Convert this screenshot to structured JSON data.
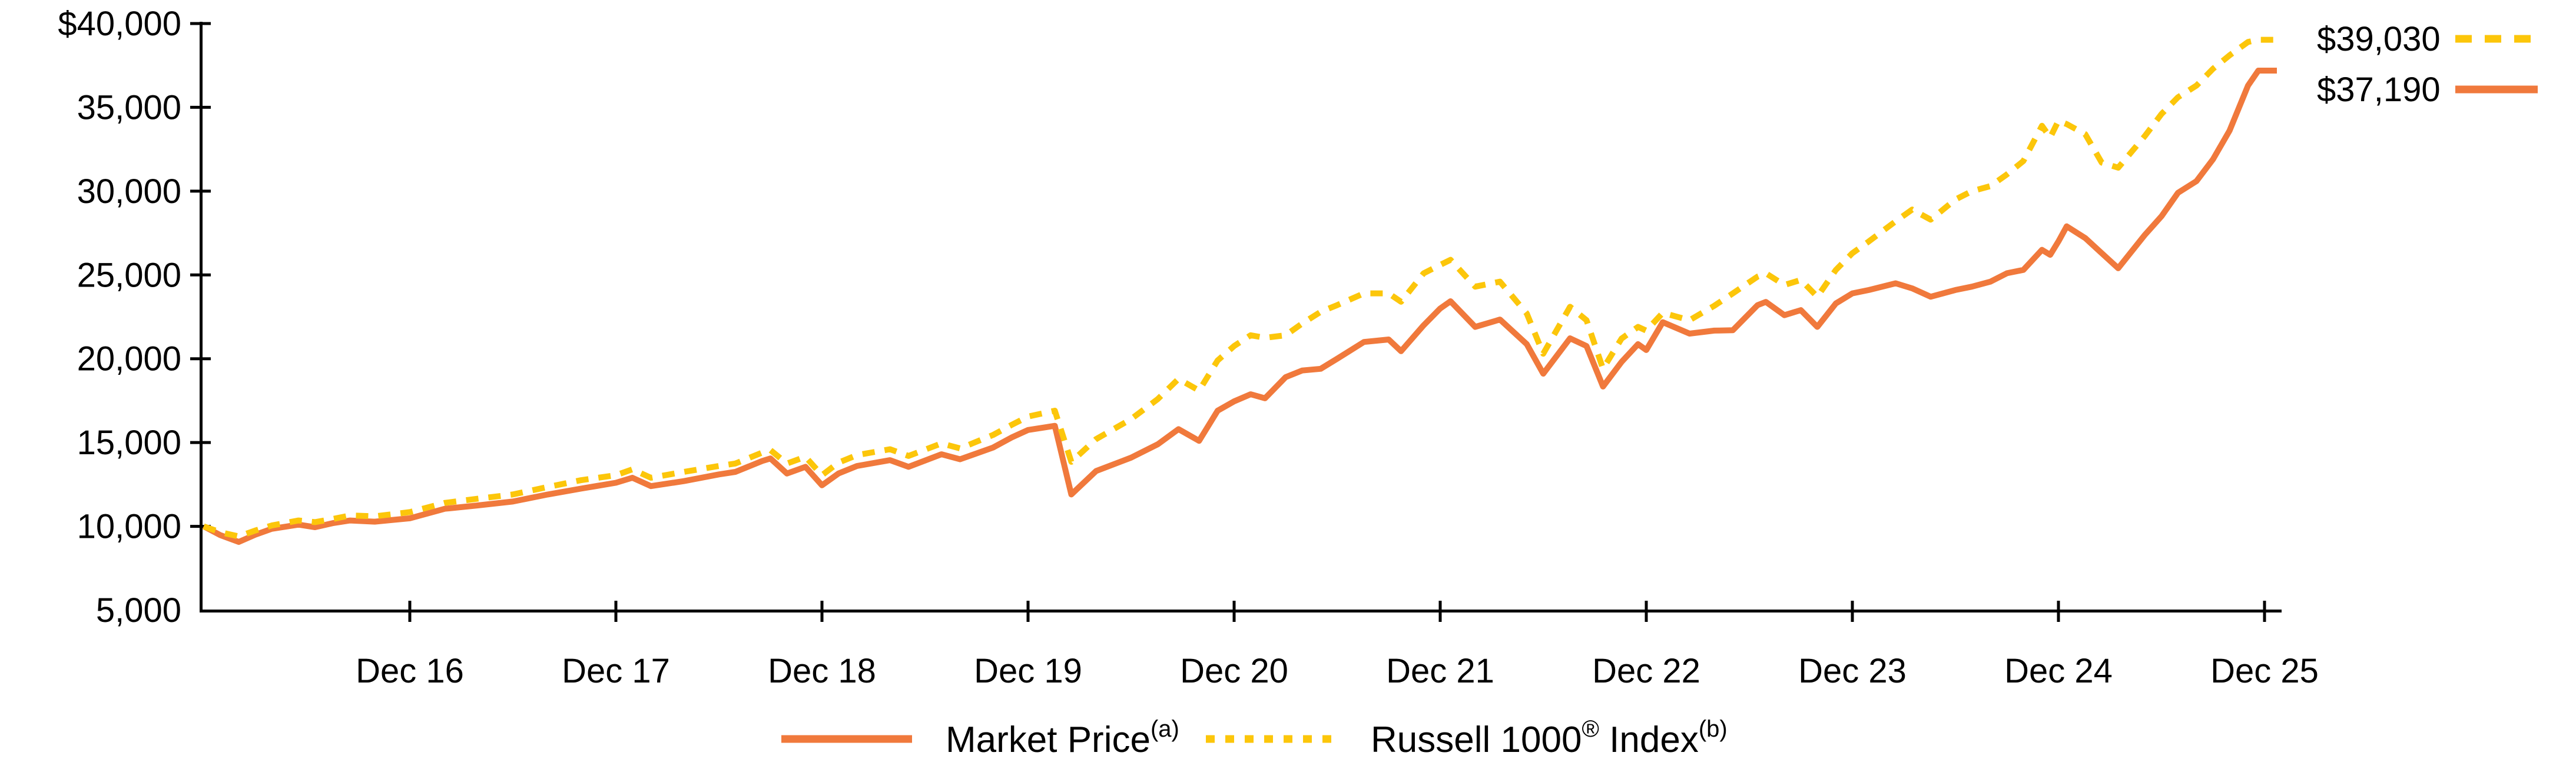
{
  "chart_data": {
    "type": "line",
    "title": "",
    "xlabel": "",
    "ylabel": "",
    "grid": false,
    "legend_position": "bottom-center",
    "y_axis": {
      "min": 5000,
      "max": 40000,
      "tick_values": [
        40000,
        35000,
        30000,
        25000,
        20000,
        15000,
        10000,
        5000
      ],
      "tick_labels": [
        "$40,000",
        "35,000",
        "30,000",
        "25,000",
        "20,000",
        "15,000",
        "10,000",
        "5,000"
      ]
    },
    "x_axis": {
      "tick_labels": [
        "Dec 16",
        "Dec 17",
        "Dec 18",
        "Dec 19",
        "Dec 20",
        "Dec 21",
        "Dec 22",
        "Dec 23",
        "Dec 24",
        "Dec 25"
      ],
      "start_value": 10000
    },
    "axis_color": "#000000",
    "series": [
      {
        "id": "market-price",
        "legend_parts": [
          "Market Price",
          "(a)"
        ],
        "end_label": "$37,190",
        "color": "#F0793C",
        "style": "solid",
        "points": [
          [
            0,
            10000
          ],
          [
            0.08,
            9480
          ],
          [
            0.17,
            9070
          ],
          [
            0.25,
            9500
          ],
          [
            0.33,
            9850
          ],
          [
            0.46,
            10100
          ],
          [
            0.54,
            9950
          ],
          [
            0.63,
            10200
          ],
          [
            0.71,
            10350
          ],
          [
            0.83,
            10280
          ],
          [
            1,
            10480
          ],
          [
            1.17,
            11050
          ],
          [
            1.33,
            11250
          ],
          [
            1.5,
            11480
          ],
          [
            1.67,
            11900
          ],
          [
            1.83,
            12250
          ],
          [
            2,
            12600
          ],
          [
            2.08,
            12900
          ],
          [
            2.17,
            12400
          ],
          [
            2.33,
            12700
          ],
          [
            2.5,
            13100
          ],
          [
            2.58,
            13250
          ],
          [
            2.71,
            13900
          ],
          [
            2.75,
            14050
          ],
          [
            2.83,
            13150
          ],
          [
            2.92,
            13550
          ],
          [
            3,
            12450
          ],
          [
            3.08,
            13150
          ],
          [
            3.17,
            13600
          ],
          [
            3.33,
            13950
          ],
          [
            3.42,
            13550
          ],
          [
            3.58,
            14300
          ],
          [
            3.67,
            14000
          ],
          [
            3.83,
            14700
          ],
          [
            3.92,
            15300
          ],
          [
            4,
            15750
          ],
          [
            4.13,
            16000
          ],
          [
            4.21,
            11900
          ],
          [
            4.33,
            13300
          ],
          [
            4.5,
            14100
          ],
          [
            4.63,
            14900
          ],
          [
            4.73,
            15800
          ],
          [
            4.83,
            15100
          ],
          [
            4.92,
            16900
          ],
          [
            5,
            17460
          ],
          [
            5.08,
            17880
          ],
          [
            5.15,
            17640
          ],
          [
            5.25,
            18900
          ],
          [
            5.33,
            19300
          ],
          [
            5.42,
            19400
          ],
          [
            5.5,
            20000
          ],
          [
            5.63,
            21000
          ],
          [
            5.75,
            21150
          ],
          [
            5.81,
            20450
          ],
          [
            5.92,
            22000
          ],
          [
            6,
            23000
          ],
          [
            6.05,
            23430
          ],
          [
            6.17,
            21900
          ],
          [
            6.29,
            22340
          ],
          [
            6.42,
            20870
          ],
          [
            6.5,
            19110
          ],
          [
            6.63,
            21220
          ],
          [
            6.71,
            20760
          ],
          [
            6.79,
            18340
          ],
          [
            6.88,
            19810
          ],
          [
            6.96,
            20870
          ],
          [
            7,
            20520
          ],
          [
            7.08,
            22180
          ],
          [
            7.21,
            21500
          ],
          [
            7.33,
            21680
          ],
          [
            7.42,
            21700
          ],
          [
            7.54,
            23200
          ],
          [
            7.58,
            23390
          ],
          [
            7.67,
            22600
          ],
          [
            7.75,
            22900
          ],
          [
            7.83,
            21900
          ],
          [
            7.92,
            23300
          ],
          [
            8,
            23900
          ],
          [
            8.08,
            24100
          ],
          [
            8.21,
            24500
          ],
          [
            8.29,
            24200
          ],
          [
            8.38,
            23700
          ],
          [
            8.5,
            24100
          ],
          [
            8.58,
            24300
          ],
          [
            8.67,
            24600
          ],
          [
            8.75,
            25100
          ],
          [
            8.83,
            25300
          ],
          [
            8.92,
            26500
          ],
          [
            8.96,
            26200
          ],
          [
            9,
            27000
          ],
          [
            9.04,
            27900
          ],
          [
            9.13,
            27200
          ],
          [
            9.21,
            26300
          ],
          [
            9.29,
            25400
          ],
          [
            9.42,
            27400
          ],
          [
            9.5,
            28500
          ],
          [
            9.58,
            29900
          ],
          [
            9.67,
            30600
          ],
          [
            9.75,
            31900
          ],
          [
            9.83,
            33600
          ],
          [
            9.92,
            36300
          ],
          [
            9.97,
            37190
          ],
          [
            10.06,
            37190
          ]
        ]
      },
      {
        "id": "russell-1000-index",
        "legend_parts": [
          "Russell 1000",
          "®",
          " Index",
          "(b)"
        ],
        "end_label": "$39,030",
        "color": "#FCC60A",
        "style": "dashed",
        "points": [
          [
            0,
            10000
          ],
          [
            0.08,
            9650
          ],
          [
            0.17,
            9400
          ],
          [
            0.25,
            9750
          ],
          [
            0.33,
            10050
          ],
          [
            0.46,
            10350
          ],
          [
            0.54,
            10250
          ],
          [
            0.63,
            10450
          ],
          [
            0.71,
            10650
          ],
          [
            0.83,
            10600
          ],
          [
            1,
            10850
          ],
          [
            1.17,
            11400
          ],
          [
            1.33,
            11650
          ],
          [
            1.5,
            11900
          ],
          [
            1.67,
            12350
          ],
          [
            1.83,
            12750
          ],
          [
            2,
            13050
          ],
          [
            2.08,
            13400
          ],
          [
            2.17,
            12900
          ],
          [
            2.33,
            13250
          ],
          [
            2.5,
            13600
          ],
          [
            2.58,
            13750
          ],
          [
            2.71,
            14400
          ],
          [
            2.75,
            14550
          ],
          [
            2.83,
            13750
          ],
          [
            2.92,
            14150
          ],
          [
            3,
            13050
          ],
          [
            3.08,
            13800
          ],
          [
            3.17,
            14250
          ],
          [
            3.33,
            14600
          ],
          [
            3.42,
            14200
          ],
          [
            3.58,
            14950
          ],
          [
            3.67,
            14650
          ],
          [
            3.83,
            15450
          ],
          [
            3.92,
            16050
          ],
          [
            4,
            16550
          ],
          [
            4.13,
            16900
          ],
          [
            4.21,
            13850
          ],
          [
            4.33,
            15200
          ],
          [
            4.5,
            16400
          ],
          [
            4.63,
            17600
          ],
          [
            4.73,
            18800
          ],
          [
            4.83,
            18100
          ],
          [
            4.92,
            19900
          ],
          [
            5,
            20760
          ],
          [
            5.08,
            21400
          ],
          [
            5.15,
            21250
          ],
          [
            5.25,
            21400
          ],
          [
            5.33,
            22100
          ],
          [
            5.42,
            22800
          ],
          [
            5.5,
            23200
          ],
          [
            5.63,
            23900
          ],
          [
            5.75,
            23900
          ],
          [
            5.81,
            23400
          ],
          [
            5.92,
            25100
          ],
          [
            6,
            25600
          ],
          [
            6.05,
            25900
          ],
          [
            6.17,
            24300
          ],
          [
            6.29,
            24600
          ],
          [
            6.42,
            22700
          ],
          [
            6.5,
            20300
          ],
          [
            6.63,
            23100
          ],
          [
            6.71,
            22300
          ],
          [
            6.79,
            19400
          ],
          [
            6.88,
            21200
          ],
          [
            6.96,
            21900
          ],
          [
            7,
            21680
          ],
          [
            7.08,
            22740
          ],
          [
            7.21,
            22300
          ],
          [
            7.33,
            23160
          ],
          [
            7.42,
            23900
          ],
          [
            7.54,
            24900
          ],
          [
            7.58,
            25100
          ],
          [
            7.67,
            24400
          ],
          [
            7.75,
            24700
          ],
          [
            7.83,
            23700
          ],
          [
            7.92,
            25300
          ],
          [
            8,
            26300
          ],
          [
            8.08,
            27000
          ],
          [
            8.21,
            28200
          ],
          [
            8.29,
            28900
          ],
          [
            8.38,
            28300
          ],
          [
            8.5,
            29500
          ],
          [
            8.58,
            30000
          ],
          [
            8.67,
            30300
          ],
          [
            8.75,
            31000
          ],
          [
            8.83,
            31800
          ],
          [
            8.92,
            33900
          ],
          [
            8.96,
            33200
          ],
          [
            9,
            34200
          ],
          [
            9.04,
            34000
          ],
          [
            9.13,
            33400
          ],
          [
            9.21,
            31700
          ],
          [
            9.29,
            31400
          ],
          [
            9.42,
            33300
          ],
          [
            9.5,
            34600
          ],
          [
            9.58,
            35600
          ],
          [
            9.67,
            36300
          ],
          [
            9.75,
            37300
          ],
          [
            9.83,
            38100
          ],
          [
            9.92,
            38900
          ],
          [
            9.97,
            39030
          ],
          [
            10.06,
            39030
          ]
        ]
      }
    ]
  }
}
